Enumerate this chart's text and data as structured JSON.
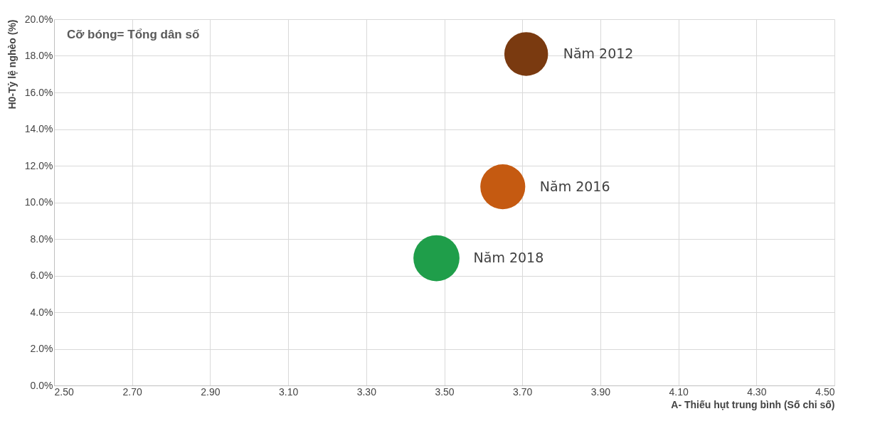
{
  "chart_data": {
    "type": "bubble",
    "xlabel": "A- Thiếu hụt trung bình (Số chỉ số)",
    "ylabel": "H0-Tỷ lệ nghèo (%)",
    "annotations": [
      "Cỡ bóng= Tổng dân số"
    ],
    "series": [
      {
        "name": "Năm 2012",
        "color": "#7a3a10",
        "x": [
          3.71
        ],
        "values": [
          18.1
        ],
        "sizes": [
          0.9
        ]
      },
      {
        "name": "Năm 2016",
        "color": "#c55a11",
        "x": [
          3.65
        ],
        "values": [
          10.85
        ],
        "sizes": [
          0.95
        ]
      },
      {
        "name": "Năm 2018",
        "color": "#1f9e4a",
        "x": [
          3.48
        ],
        "values": [
          6.95
        ],
        "sizes": [
          1
        ]
      }
    ],
    "xlim": [
      2.5,
      4.5
    ],
    "xticks": [
      {
        "value": 2.5,
        "label": "2.50"
      },
      {
        "value": 2.7,
        "label": "2.70"
      },
      {
        "value": 2.9,
        "label": "2.90"
      },
      {
        "value": 3.1,
        "label": "3.10"
      },
      {
        "value": 3.3,
        "label": "3.30"
      },
      {
        "value": 3.5,
        "label": "3.50"
      },
      {
        "value": 3.7,
        "label": "3.70"
      },
      {
        "value": 3.9,
        "label": "3.90"
      },
      {
        "value": 4.1,
        "label": "4.10"
      },
      {
        "value": 4.3,
        "label": "4.30"
      },
      {
        "value": 4.5,
        "label": "4.50"
      }
    ],
    "ylim": [
      0,
      20
    ],
    "yticks": [
      {
        "value": 0,
        "label": "0.0%"
      },
      {
        "value": 2,
        "label": "2.0%"
      },
      {
        "value": 4,
        "label": "4.0%"
      },
      {
        "value": 6,
        "label": "6.0%"
      },
      {
        "value": 8,
        "label": "8.0%"
      },
      {
        "value": 10,
        "label": "10.0%"
      },
      {
        "value": 12,
        "label": "12.0%"
      },
      {
        "value": 14,
        "label": "14.0%"
      },
      {
        "value": 16,
        "label": "16.0%"
      },
      {
        "value": 18,
        "label": "18.0%"
      },
      {
        "value": 20,
        "label": "20.0%"
      }
    ],
    "grid": true
  }
}
